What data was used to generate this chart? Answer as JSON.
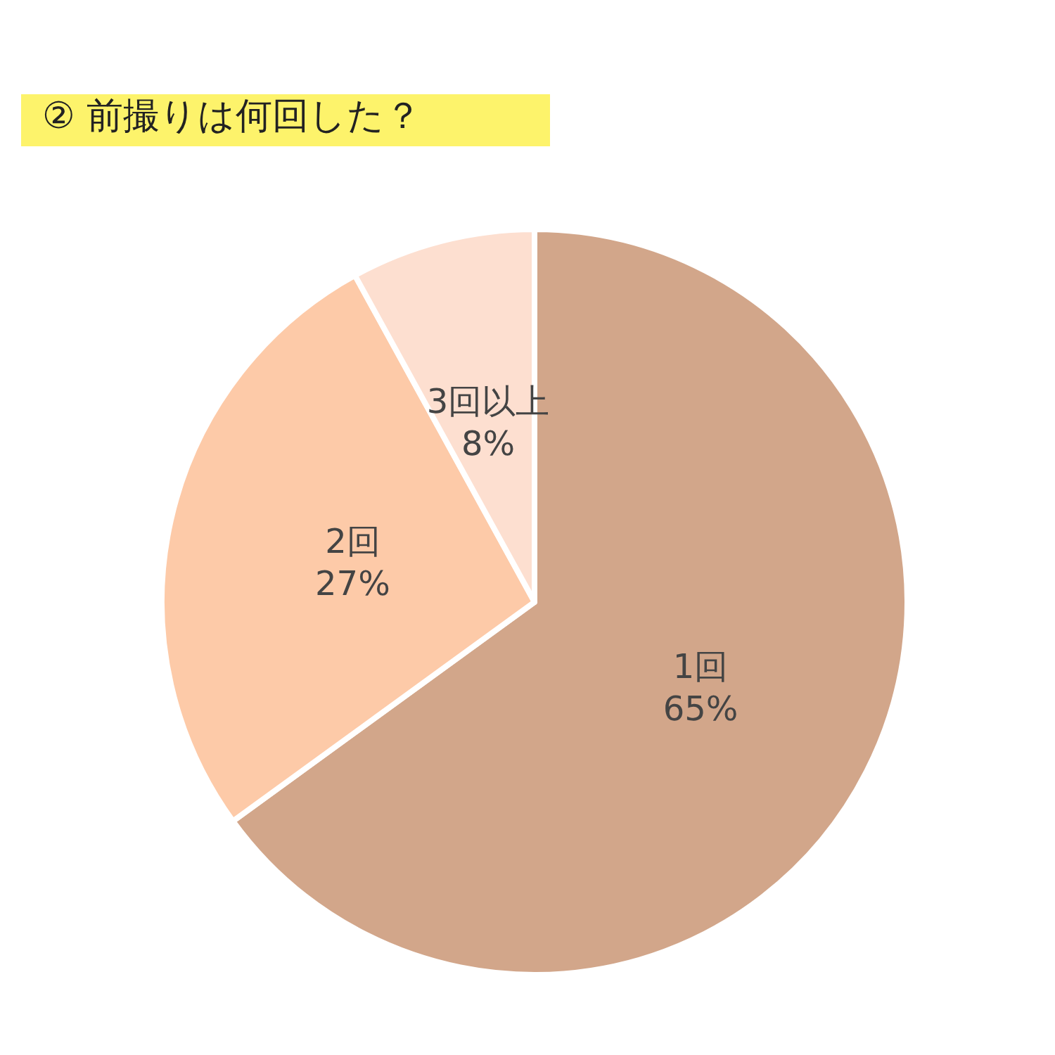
{
  "chart_data": {
    "type": "pie",
    "title": "② 前撮りは何回した？",
    "categories": [
      "1回",
      "2回",
      "3回以上"
    ],
    "values": [
      65,
      27,
      8
    ],
    "colors": [
      "#d2a68a",
      "#fdcaa8",
      "#fddfd0"
    ],
    "value_labels": [
      "65%",
      "27%",
      "8%"
    ]
  }
}
